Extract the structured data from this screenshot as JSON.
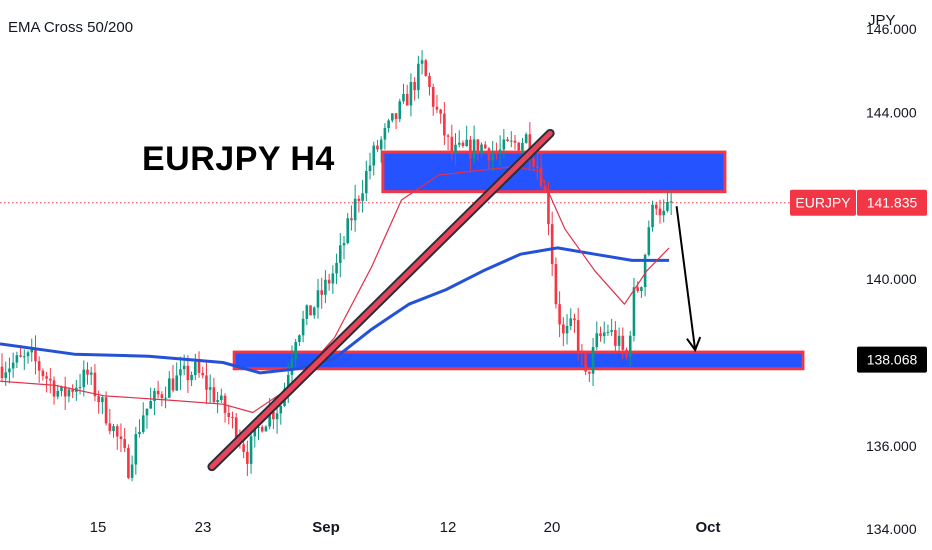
{
  "chart_data": {
    "type": "candlestick",
    "indicator": "EMA Cross 50/200",
    "title": "EURJPY H4",
    "symbol": "EURJPY",
    "price_unit": "JPY",
    "current_price": 141.835,
    "support_level": 138.068,
    "ylim": [
      133.5,
      146.7
    ],
    "yticks": [
      146.0,
      144.0,
      140.0,
      136.0,
      134.0
    ],
    "ytick_labels": [
      "146.000",
      "144.000",
      "140.000",
      "136.000",
      "134.000"
    ],
    "xticks": [
      {
        "label": "15",
        "bold": false
      },
      {
        "label": "23",
        "bold": false
      },
      {
        "label": "Sep",
        "bold": true
      },
      {
        "label": "12",
        "bold": false
      },
      {
        "label": "20",
        "bold": false
      },
      {
        "label": "Oct",
        "bold": true
      }
    ],
    "close_path": [
      [
        0,
        137.9
      ],
      [
        8,
        138.1
      ],
      [
        16,
        137.2
      ],
      [
        23,
        137.7
      ],
      [
        30,
        136.4
      ],
      [
        34,
        135.5
      ],
      [
        38,
        136.8
      ],
      [
        45,
        137.5
      ],
      [
        52,
        137.8
      ],
      [
        58,
        137.1
      ],
      [
        63,
        136.4
      ],
      [
        66,
        135.8
      ],
      [
        70,
        136.6
      ],
      [
        75,
        137.0
      ],
      [
        79,
        138.7
      ],
      [
        85,
        139.5
      ],
      [
        90,
        140.3
      ],
      [
        95,
        141.8
      ],
      [
        100,
        143.0
      ],
      [
        104,
        143.6
      ],
      [
        108,
        144.2
      ],
      [
        113,
        145.1
      ],
      [
        117,
        144.0
      ],
      [
        121,
        143.0
      ],
      [
        125,
        143.1
      ],
      [
        129,
        143.2
      ],
      [
        133,
        143.0
      ],
      [
        137,
        143.2
      ],
      [
        141,
        143.4
      ],
      [
        145,
        142.5
      ],
      [
        147,
        141.5
      ],
      [
        149,
        139.5
      ],
      [
        151,
        138.6
      ],
      [
        154,
        138.9
      ],
      [
        157,
        137.6
      ],
      [
        160,
        138.5
      ],
      [
        163,
        138.8
      ],
      [
        166,
        138.4
      ],
      [
        168,
        138.1
      ],
      [
        170,
        139.6
      ],
      [
        172,
        140.0
      ],
      [
        174,
        141.3
      ],
      [
        176,
        141.9
      ],
      [
        178,
        141.5
      ],
      [
        180,
        141.8
      ]
    ],
    "ema50": [
      [
        0,
        137.55
      ],
      [
        15,
        137.45
      ],
      [
        28,
        137.2
      ],
      [
        45,
        137.1
      ],
      [
        60,
        137.0
      ],
      [
        68,
        136.8
      ],
      [
        78,
        137.4
      ],
      [
        90,
        138.6
      ],
      [
        100,
        140.3
      ],
      [
        108,
        141.9
      ],
      [
        118,
        142.5
      ],
      [
        128,
        142.6
      ],
      [
        138,
        142.7
      ],
      [
        145,
        142.6
      ],
      [
        152,
        141.2
      ],
      [
        160,
        140.2
      ],
      [
        168,
        139.4
      ],
      [
        174,
        140.2
      ],
      [
        180,
        140.75
      ]
    ],
    "ema200": [
      [
        0,
        138.45
      ],
      [
        20,
        138.2
      ],
      [
        40,
        138.15
      ],
      [
        60,
        138.0
      ],
      [
        70,
        137.75
      ],
      [
        80,
        137.85
      ],
      [
        90,
        138.1
      ],
      [
        100,
        138.8
      ],
      [
        110,
        139.4
      ],
      [
        120,
        139.75
      ],
      [
        130,
        140.2
      ],
      [
        140,
        140.6
      ],
      [
        150,
        140.75
      ],
      [
        160,
        140.6
      ],
      [
        170,
        140.45
      ],
      [
        180,
        140.45
      ]
    ],
    "zones": [
      {
        "name": "resistance-zone",
        "from": 103,
        "to": 195,
        "high": 143.05,
        "low": 142.1
      },
      {
        "name": "support-zone",
        "from": 63,
        "to": 216,
        "high": 138.25,
        "low": 137.85
      }
    ],
    "trendline": {
      "from": [
        57,
        135.5
      ],
      "to": [
        148,
        143.5
      ]
    },
    "projection_arrow": {
      "from": [
        182,
        141.75
      ],
      "to": [
        187,
        138.3
      ]
    }
  }
}
